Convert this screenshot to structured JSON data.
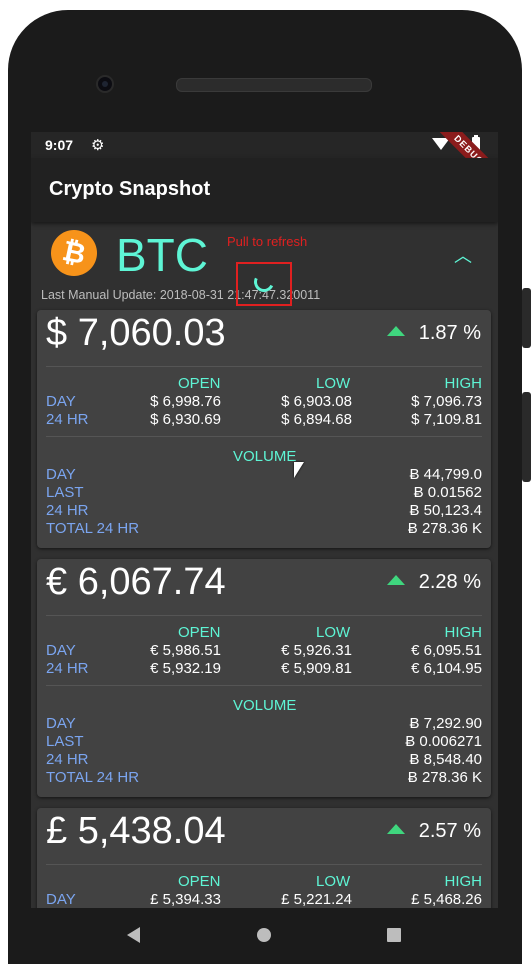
{
  "status": {
    "time": "9:07",
    "debug_banner": "DEBUG"
  },
  "app": {
    "title": "Crypto Snapshot"
  },
  "coin": {
    "symbol": "BTC",
    "logo_glyph": "₿",
    "pull_to_refresh": "Pull to refresh",
    "last_update": "Last Manual Update: 2018-08-31 21:47:47.320011"
  },
  "cards": [
    {
      "price": "$ 7,060.03",
      "change": "1.87 %",
      "headers": {
        "open": "OPEN",
        "low": "LOW",
        "high": "HIGH",
        "volume": "VOLUME"
      },
      "day": {
        "label": "DAY",
        "open": "$ 6,998.76",
        "low": "$ 6,903.08",
        "high": "$ 7,096.73"
      },
      "hr24": {
        "label": "24 HR",
        "open": "$ 6,930.69",
        "low": "$ 6,894.68",
        "high": "$ 7,109.81"
      },
      "volume": [
        {
          "label": "DAY",
          "value": "Ƀ 44,799.0"
        },
        {
          "label": "LAST",
          "value": "Ƀ 0.01562"
        },
        {
          "label": "24 HR",
          "value": "Ƀ 50,123.4"
        },
        {
          "label": "TOTAL 24 HR",
          "value": "Ƀ 278.36 K"
        }
      ]
    },
    {
      "price": "€ 6,067.74",
      "change": "2.28 %",
      "headers": {
        "open": "OPEN",
        "low": "LOW",
        "high": "HIGH",
        "volume": "VOLUME"
      },
      "day": {
        "label": "DAY",
        "open": "€ 5,986.51",
        "low": "€ 5,926.31",
        "high": "€ 6,095.51"
      },
      "hr24": {
        "label": "24 HR",
        "open": "€ 5,932.19",
        "low": "€ 5,909.81",
        "high": "€ 6,104.95"
      },
      "volume": [
        {
          "label": "DAY",
          "value": "Ƀ 7,292.90"
        },
        {
          "label": "LAST",
          "value": "Ƀ 0.006271"
        },
        {
          "label": "24 HR",
          "value": "Ƀ 8,548.40"
        },
        {
          "label": "TOTAL 24 HR",
          "value": "Ƀ 278.36 K"
        }
      ]
    },
    {
      "price": "£ 5,438.04",
      "change": "2.57 %",
      "headers": {
        "open": "OPEN",
        "low": "LOW",
        "high": "HIGH"
      },
      "day": {
        "label": "DAY",
        "open": "£ 5,394.33",
        "low": "£ 5,221.24",
        "high": "£ 5,468.26"
      }
    }
  ]
}
